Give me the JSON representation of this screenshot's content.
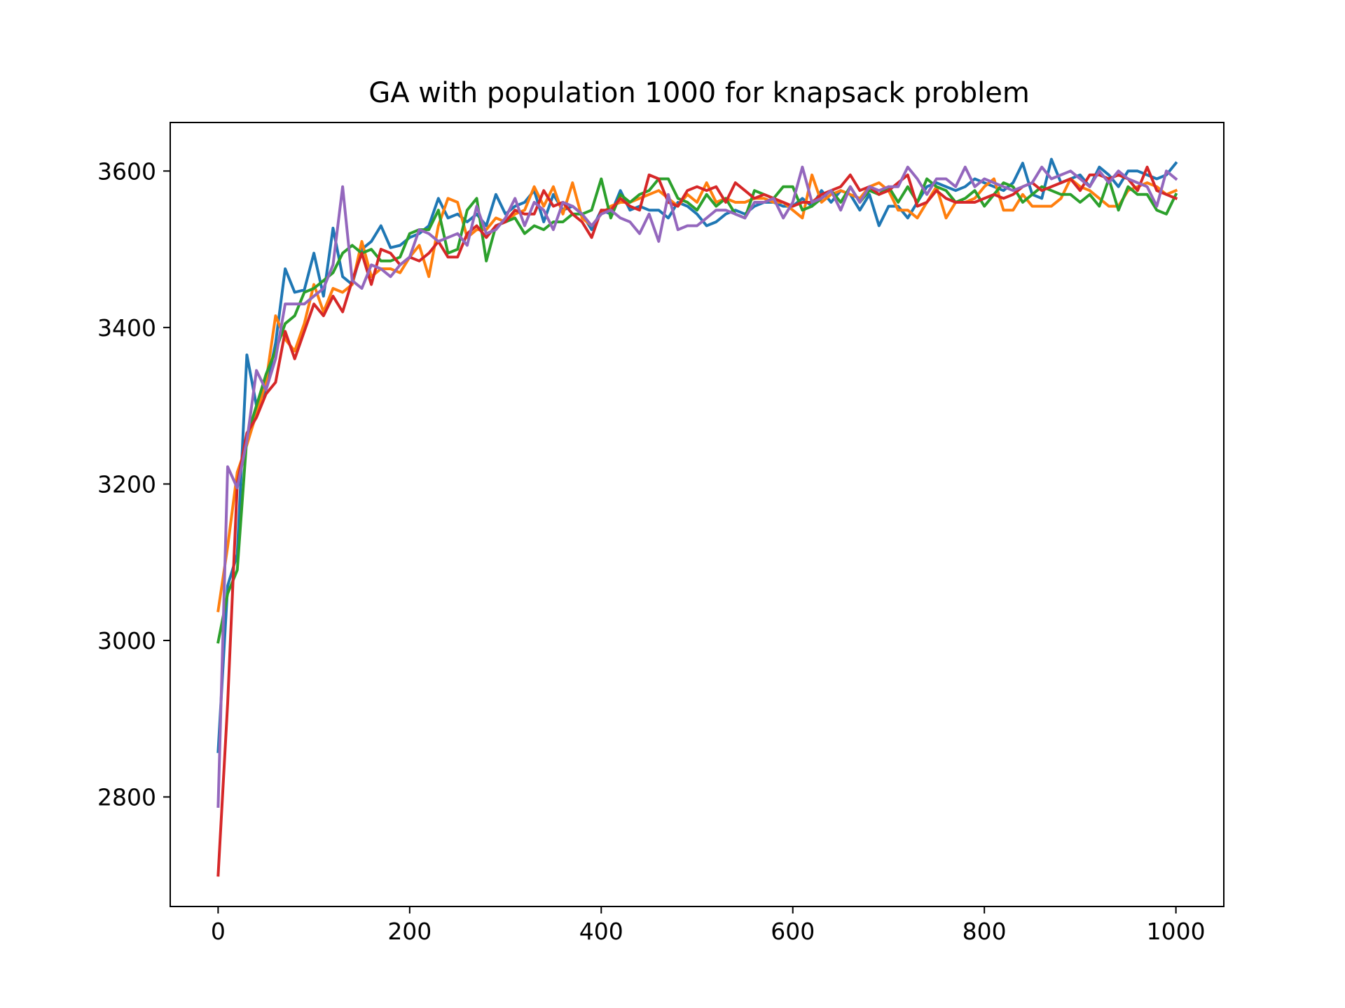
{
  "chart_data": {
    "type": "line",
    "title": "GA with population 1000 for knapsack problem",
    "xlabel": "",
    "ylabel": "",
    "xlim": [
      -50,
      1050
    ],
    "ylim": [
      2660,
      3662
    ],
    "xticks": [
      0,
      200,
      400,
      600,
      800,
      1000
    ],
    "yticks": [
      2800,
      3000,
      3200,
      3400,
      3600
    ],
    "xtick_labels": [
      "0",
      "200",
      "400",
      "600",
      "800",
      "1000"
    ],
    "ytick_labels": [
      "2800",
      "3000",
      "3200",
      "3400",
      "3600"
    ],
    "grid": false,
    "legend": "none",
    "x": [
      0,
      10,
      20,
      30,
      40,
      50,
      60,
      70,
      80,
      90,
      100,
      110,
      120,
      130,
      140,
      150,
      160,
      170,
      180,
      190,
      200,
      210,
      220,
      230,
      240,
      250,
      260,
      270,
      280,
      290,
      300,
      310,
      320,
      330,
      340,
      350,
      360,
      370,
      380,
      390,
      400,
      410,
      420,
      430,
      440,
      450,
      460,
      470,
      480,
      490,
      500,
      510,
      520,
      530,
      540,
      550,
      560,
      570,
      580,
      590,
      600,
      610,
      620,
      630,
      640,
      650,
      660,
      670,
      680,
      690,
      700,
      710,
      720,
      730,
      740,
      750,
      760,
      770,
      780,
      790,
      800,
      810,
      820,
      830,
      840,
      850,
      860,
      870,
      880,
      890,
      900,
      910,
      920,
      930,
      940,
      950,
      960,
      970,
      980,
      990,
      1000
    ],
    "series": [
      {
        "color": "#1f77b4",
        "values": [
          2858,
          3070,
          3110,
          3365,
          3300,
          3320,
          3380,
          3475,
          3445,
          3448,
          3495,
          3440,
          3527,
          3465,
          3455,
          3500,
          3510,
          3530,
          3502,
          3505,
          3515,
          3520,
          3530,
          3565,
          3540,
          3545,
          3535,
          3545,
          3530,
          3570,
          3545,
          3555,
          3560,
          3575,
          3535,
          3570,
          3550,
          3555,
          3545,
          3525,
          3550,
          3545,
          3575,
          3550,
          3555,
          3550,
          3550,
          3540,
          3560,
          3555,
          3545,
          3530,
          3535,
          3545,
          3550,
          3545,
          3555,
          3560,
          3560,
          3555,
          3555,
          3565,
          3555,
          3575,
          3560,
          3575,
          3570,
          3550,
          3570,
          3530,
          3555,
          3555,
          3540,
          3560,
          3580,
          3585,
          3580,
          3575,
          3580,
          3590,
          3585,
          3580,
          3575,
          3585,
          3610,
          3570,
          3565,
          3615,
          3585,
          3590,
          3595,
          3580,
          3605,
          3595,
          3580,
          3600,
          3600,
          3595,
          3590,
          3595,
          3610
        ]
      },
      {
        "color": "#ff7f0e",
        "values": [
          3038,
          3120,
          3215,
          3250,
          3290,
          3330,
          3415,
          3385,
          3370,
          3405,
          3455,
          3420,
          3450,
          3445,
          3455,
          3510,
          3465,
          3475,
          3475,
          3470,
          3490,
          3505,
          3465,
          3530,
          3565,
          3560,
          3515,
          3525,
          3525,
          3540,
          3535,
          3545,
          3550,
          3580,
          3555,
          3580,
          3545,
          3585,
          3540,
          3530,
          3545,
          3555,
          3560,
          3560,
          3565,
          3570,
          3575,
          3565,
          3555,
          3570,
          3560,
          3585,
          3560,
          3565,
          3560,
          3560,
          3565,
          3565,
          3560,
          3560,
          3550,
          3540,
          3595,
          3560,
          3570,
          3575,
          3570,
          3565,
          3580,
          3585,
          3575,
          3550,
          3550,
          3540,
          3560,
          3580,
          3540,
          3560,
          3560,
          3565,
          3580,
          3590,
          3550,
          3550,
          3570,
          3555,
          3555,
          3555,
          3565,
          3590,
          3580,
          3575,
          3565,
          3555,
          3555,
          3575,
          3580,
          3585,
          3580,
          3570,
          3575
        ]
      },
      {
        "color": "#2ca02c",
        "values": [
          2998,
          3060,
          3090,
          3260,
          3300,
          3340,
          3370,
          3405,
          3415,
          3445,
          3450,
          3460,
          3470,
          3495,
          3505,
          3495,
          3500,
          3485,
          3485,
          3490,
          3520,
          3525,
          3525,
          3550,
          3495,
          3500,
          3550,
          3565,
          3485,
          3530,
          3535,
          3540,
          3520,
          3530,
          3525,
          3535,
          3535,
          3545,
          3545,
          3550,
          3590,
          3540,
          3570,
          3560,
          3570,
          3575,
          3590,
          3590,
          3565,
          3560,
          3550,
          3570,
          3555,
          3565,
          3545,
          3540,
          3575,
          3570,
          3565,
          3580,
          3580,
          3550,
          3555,
          3565,
          3575,
          3560,
          3580,
          3560,
          3575,
          3570,
          3580,
          3560,
          3580,
          3560,
          3590,
          3580,
          3575,
          3560,
          3565,
          3575,
          3555,
          3570,
          3585,
          3580,
          3560,
          3570,
          3580,
          3575,
          3570,
          3570,
          3560,
          3570,
          3555,
          3590,
          3550,
          3580,
          3570,
          3570,
          3550,
          3545,
          3570
        ]
      },
      {
        "color": "#d62728",
        "values": [
          2700,
          2920,
          3200,
          3265,
          3285,
          3315,
          3330,
          3395,
          3360,
          3395,
          3430,
          3415,
          3440,
          3420,
          3460,
          3495,
          3455,
          3500,
          3495,
          3480,
          3490,
          3485,
          3495,
          3510,
          3490,
          3490,
          3520,
          3530,
          3515,
          3530,
          3535,
          3550,
          3545,
          3545,
          3575,
          3555,
          3560,
          3545,
          3535,
          3515,
          3550,
          3550,
          3565,
          3555,
          3550,
          3595,
          3590,
          3560,
          3555,
          3575,
          3580,
          3575,
          3580,
          3560,
          3585,
          3575,
          3565,
          3570,
          3565,
          3560,
          3555,
          3560,
          3560,
          3570,
          3575,
          3580,
          3595,
          3575,
          3580,
          3570,
          3575,
          3585,
          3595,
          3555,
          3560,
          3575,
          3565,
          3560,
          3560,
          3560,
          3565,
          3570,
          3565,
          3570,
          3580,
          3585,
          3575,
          3580,
          3585,
          3590,
          3575,
          3595,
          3595,
          3590,
          3595,
          3590,
          3575,
          3605,
          3575,
          3570,
          3565
        ]
      },
      {
        "color": "#9467bd",
        "values": [
          2788,
          3222,
          3195,
          3255,
          3345,
          3320,
          3360,
          3430,
          3430,
          3430,
          3440,
          3450,
          3480,
          3580,
          3460,
          3450,
          3480,
          3475,
          3465,
          3480,
          3490,
          3525,
          3520,
          3510,
          3515,
          3520,
          3505,
          3555,
          3520,
          3525,
          3540,
          3565,
          3530,
          3560,
          3550,
          3525,
          3560,
          3555,
          3545,
          3530,
          3545,
          3550,
          3540,
          3535,
          3520,
          3545,
          3510,
          3570,
          3525,
          3530,
          3530,
          3540,
          3550,
          3550,
          3545,
          3540,
          3560,
          3560,
          3565,
          3540,
          3560,
          3605,
          3560,
          3565,
          3575,
          3550,
          3580,
          3560,
          3580,
          3575,
          3580,
          3580,
          3605,
          3590,
          3570,
          3590,
          3590,
          3580,
          3605,
          3580,
          3590,
          3585,
          3580,
          3575,
          3580,
          3585,
          3605,
          3590,
          3595,
          3600,
          3590,
          3580,
          3600,
          3585,
          3600,
          3590,
          3585,
          3580,
          3555,
          3600,
          3590
        ]
      }
    ]
  }
}
